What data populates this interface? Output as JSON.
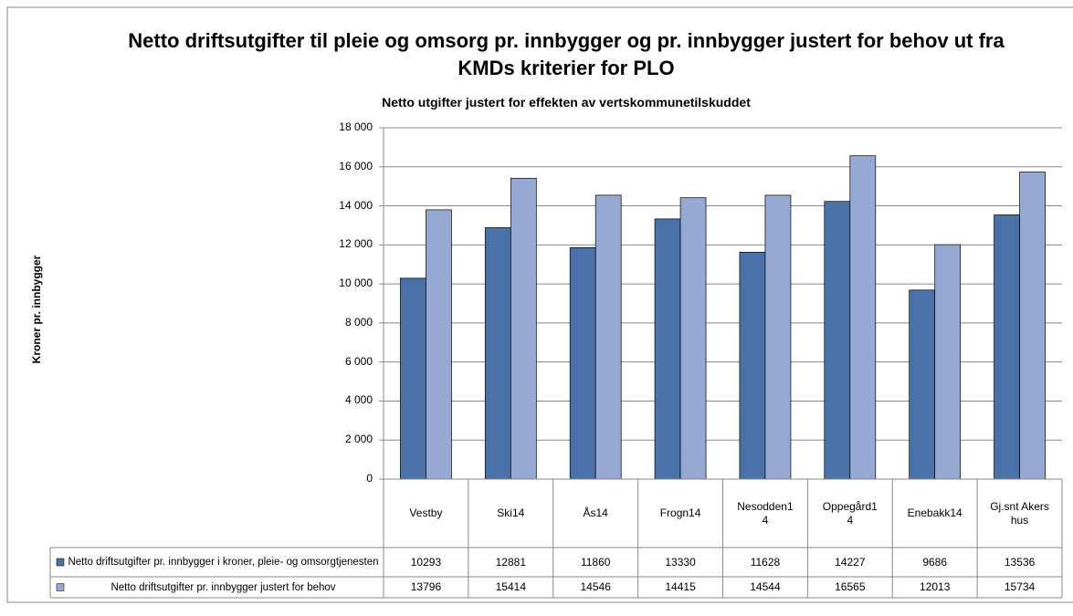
{
  "chart_data": {
    "type": "bar",
    "title": "Netto driftsutgifter til pleie og omsorg pr. innbygger og pr. innbygger justert for behov ut fra KMDs kriterier for PLO",
    "subtitle": "Netto utgifter justert for effekten av vertskommunetilskuddet",
    "y_label": "Kroner pr. innbygger",
    "categories": [
      "Vestby",
      "Ski14",
      "Ås14",
      "Frogn14",
      "Nesodden14",
      "Oppegård14",
      "Enebakk14",
      "Gj.snt Akershus"
    ],
    "series": [
      {
        "name": "Netto driftsutgifter pr. innbygger i kroner, pleie- og omsorgtjenesten",
        "color": "#4a72a8",
        "values": [
          10293,
          12881,
          11860,
          13330,
          11628,
          14227,
          9686,
          13536
        ]
      },
      {
        "name": "Netto driftsutgifter pr. innbygger justert for behov",
        "color": "#95a9d3",
        "values": [
          13796,
          15414,
          14546,
          14415,
          14544,
          16565,
          12013,
          15734
        ]
      }
    ],
    "ylim": [
      0,
      18000
    ],
    "yticks": [
      0,
      {
        "value": 2000,
        "label": "2 000"
      },
      {
        "value": 4000,
        "label": "4 000"
      },
      {
        "value": 6000,
        "label": "6 000"
      },
      {
        "value": 8000,
        "label": "8 000"
      },
      {
        "value": 10000,
        "label": "10 000"
      },
      {
        "value": 12000,
        "label": "12 000"
      },
      {
        "value": 14000,
        "label": "14 000"
      },
      {
        "value": 16000,
        "label": "16 000"
      },
      {
        "value": 18000,
        "label": "18 000"
      }
    ],
    "grid": true
  }
}
